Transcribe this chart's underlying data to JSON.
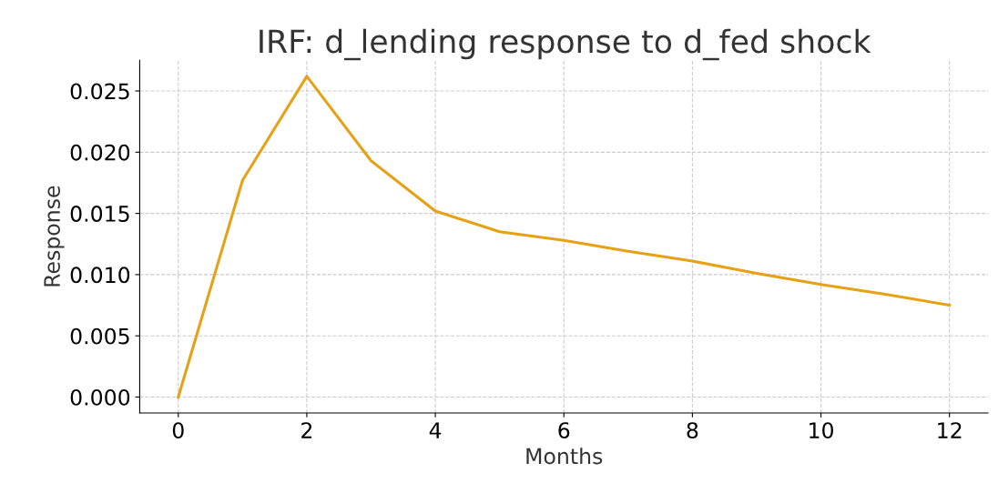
{
  "chart_data": {
    "type": "line",
    "title": "IRF: d_lending response to d_fed shock",
    "xlabel": "Months",
    "ylabel": "Response",
    "x": [
      0,
      1,
      2,
      3,
      4,
      5,
      6,
      7,
      8,
      9,
      10,
      11,
      12
    ],
    "series": [
      {
        "color": "#e6a116",
        "values": [
          0.0,
          0.0177,
          0.0262,
          0.0193,
          0.0152,
          0.0135,
          0.0128,
          0.0119,
          0.0111,
          0.0101,
          0.0092,
          0.0084,
          0.0075
        ]
      }
    ],
    "xlim": [
      -0.6,
      12.6
    ],
    "ylim": [
      -0.0013,
      0.0275
    ],
    "xticks": [
      0,
      2,
      4,
      6,
      8,
      10,
      12
    ],
    "yticks": [
      {
        "value": 0,
        "label": "0.000"
      },
      {
        "value": 0.005,
        "label": "0.005"
      },
      {
        "value": 0.01,
        "label": "0.010"
      },
      {
        "value": 0.015,
        "label": "0.015"
      },
      {
        "value": 0.02,
        "label": "0.020"
      },
      {
        "value": 0.025,
        "label": "0.025"
      }
    ],
    "grid": true,
    "marker": "none",
    "line_style": "solid",
    "legend": false
  }
}
